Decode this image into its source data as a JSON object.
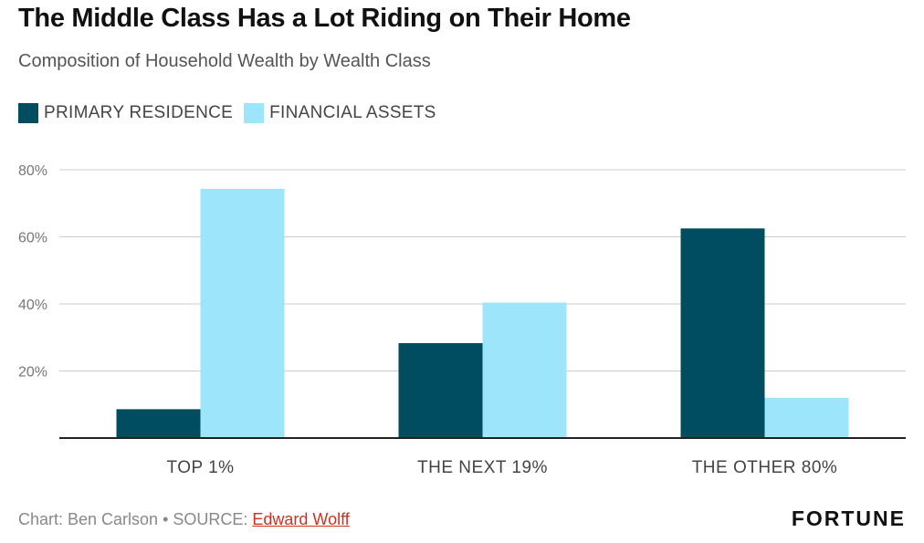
{
  "title": "The Middle Class Has a Lot Riding on Their Home",
  "subtitle": "Composition of Household Wealth by Wealth Class",
  "footer": {
    "credit": "Chart: Ben Carlson • SOURCE: ",
    "source_link": "Edward Wolff",
    "brand": "FORTUNE"
  },
  "colors": {
    "primary_residence": "#004d60",
    "financial_assets": "#9de5fb"
  },
  "chart_data": {
    "type": "bar",
    "categories": [
      "TOP 1%",
      "THE NEXT 19%",
      "THE OTHER 80%"
    ],
    "series": [
      {
        "name": "PRIMARY RESIDENCE",
        "values": [
          8.6,
          28.3,
          62.5
        ]
      },
      {
        "name": "FINANCIAL ASSETS",
        "values": [
          74.3,
          40.4,
          12.0
        ]
      }
    ],
    "yticks": [
      "20%",
      "40%",
      "60%",
      "80%"
    ],
    "ytick_values": [
      20,
      40,
      60,
      80
    ],
    "ylim": [
      0,
      80
    ],
    "grid": true,
    "legend": "top-left"
  }
}
